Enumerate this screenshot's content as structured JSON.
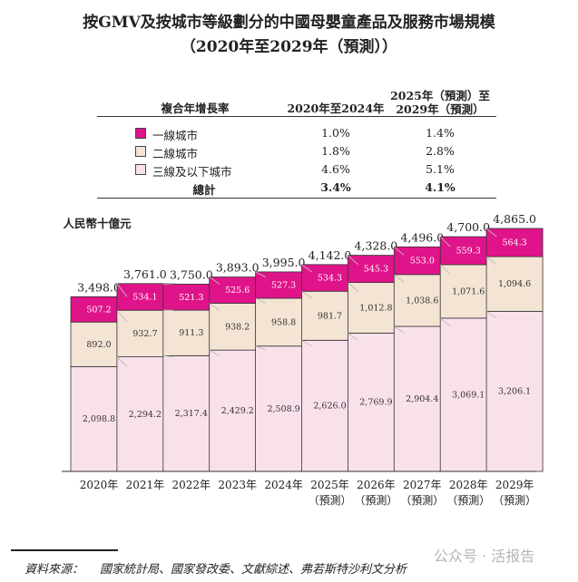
{
  "chart_data": {
    "type": "bar",
    "stacked": true,
    "title": "按GMV及按城市等級劃分的中國母嬰童產品及服務市場規模",
    "subtitle": "（2020年至2029年（預測））",
    "ylabel": "人民幣十億元",
    "categories": [
      "2020年",
      "2021年",
      "2022年",
      "2023年",
      "2024年",
      "2025年",
      "2026年",
      "2027年",
      "2028年",
      "2029年"
    ],
    "category_notes": [
      "",
      "",
      "",
      "",
      "",
      "（預測）",
      "（預測）",
      "（預測）",
      "（預測）",
      "（預測）"
    ],
    "series": [
      {
        "name": "三線及以下城市",
        "color": "#f9e1ec",
        "values": [
          2098.8,
          2294.2,
          2317.4,
          2429.2,
          2508.9,
          2626.0,
          2769.9,
          2904.4,
          3069.1,
          3206.1
        ],
        "labels": [
          "2,098.8",
          "2,294.2",
          "2,317.4",
          "2,429.2",
          "2,508.9",
          "2,626.0",
          "2,769.9",
          "2,904.4",
          "3,069.1",
          "3,206.1"
        ]
      },
      {
        "name": "二線城市",
        "color": "#f3e4d3",
        "values": [
          892.0,
          932.7,
          911.3,
          938.2,
          958.8,
          981.7,
          1012.8,
          1038.6,
          1071.6,
          1094.6
        ],
        "labels": [
          "892.0",
          "932.7",
          "911.3",
          "938.2",
          "958.8",
          "981.7",
          "1,012.8",
          "1,038.6",
          "1,071.6",
          "1,094.6"
        ]
      },
      {
        "name": "一線城市",
        "color": "#e0148a",
        "values": [
          507.2,
          534.1,
          521.3,
          525.6,
          527.3,
          534.3,
          545.3,
          553.0,
          559.3,
          564.3
        ],
        "labels": [
          "507.2",
          "534.1",
          "521.3",
          "525.6",
          "527.3",
          "534.3",
          "545.3",
          "553.0",
          "559.3",
          "564.3"
        ]
      }
    ],
    "totals": [
      3498.0,
      3761.0,
      3750.0,
      3893.0,
      3995.0,
      4142.0,
      4328.0,
      4496.0,
      4700.0,
      4865.0
    ],
    "total_labels": [
      "3,498.0",
      "3,761.0",
      "3,750.0",
      "3,893.0",
      "3,995.0",
      "4,142.0",
      "4,328.0",
      "4,496.0",
      "4,700.0",
      "4,865.0"
    ],
    "ylim": [
      0,
      4865.0
    ]
  },
  "cagr_table": {
    "row_header": "複合年增長率",
    "col1_header": "2020年至2024年",
    "col2_header_line1": "2025年（預測）至",
    "col2_header_line2": "2029年（預測）",
    "rows": [
      {
        "label": "一線城市",
        "v1": "1.0%",
        "v2": "1.4%",
        "color": "#e0148a"
      },
      {
        "label": "二線城市",
        "v1": "1.8%",
        "v2": "2.8%",
        "color": "#f3e4d3"
      },
      {
        "label": "三線及以下城市",
        "v1": "4.6%",
        "v2": "5.1%",
        "color": "#f9e1ec"
      }
    ],
    "total": {
      "label": "總計",
      "v1": "3.4%",
      "v2": "4.1%"
    }
  },
  "footer": {
    "source_label": "資料來源：",
    "source_text": "國家統計局、國家發改委、文獻綜述、弗若斯特沙利文分析"
  },
  "watermark": "公众号 · 活报告"
}
